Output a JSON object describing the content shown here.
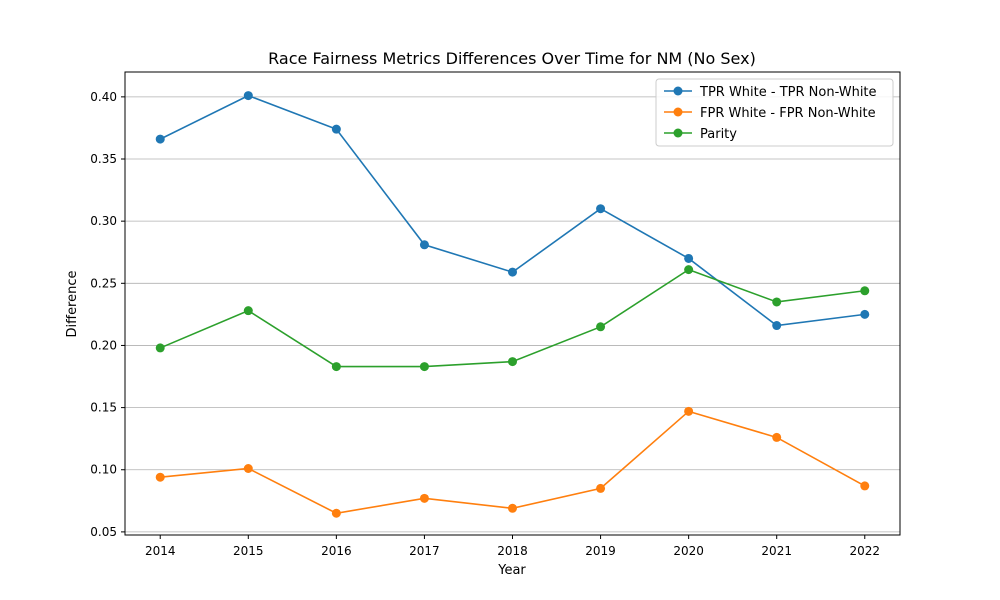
{
  "chart_data": {
    "type": "line",
    "title": "Race Fairness Metrics Differences Over Time for NM (No Sex)",
    "xlabel": "Year",
    "ylabel": "Difference",
    "x": [
      2014,
      2015,
      2016,
      2017,
      2018,
      2019,
      2020,
      2021,
      2022
    ],
    "xticks": [
      "2014",
      "2015",
      "2016",
      "2017",
      "2018",
      "2019",
      "2020",
      "2021",
      "2022"
    ],
    "xlim": [
      2013.6,
      2022.4
    ],
    "ylim": [
      0.0475,
      0.42
    ],
    "yticks": [
      "0.05",
      "0.10",
      "0.15",
      "0.20",
      "0.25",
      "0.30",
      "0.35",
      "0.40"
    ],
    "grid": "y",
    "legend_position": "top-right",
    "series": [
      {
        "name": "TPR White - TPR Non-White",
        "color": "#1f77b4",
        "values": [
          0.366,
          0.401,
          0.374,
          0.281,
          0.259,
          0.31,
          0.27,
          0.216,
          0.225
        ]
      },
      {
        "name": "FPR White - FPR Non-White",
        "color": "#ff7f0e",
        "values": [
          0.094,
          0.101,
          0.065,
          0.077,
          0.069,
          0.085,
          0.147,
          0.126,
          0.087
        ]
      },
      {
        "name": "Parity",
        "color": "#2ca02c",
        "values": [
          0.198,
          0.228,
          0.183,
          0.183,
          0.187,
          0.215,
          0.261,
          0.235,
          0.244
        ]
      }
    ]
  }
}
